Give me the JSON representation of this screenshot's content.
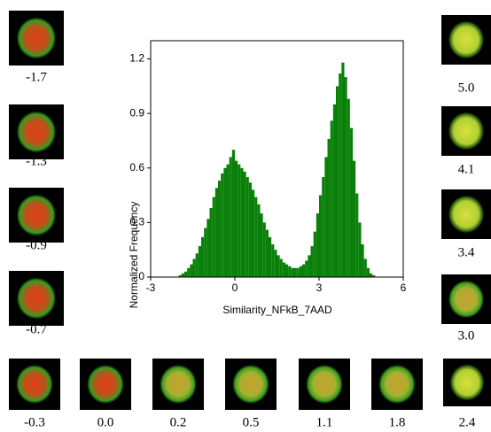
{
  "chart_data": {
    "type": "histogram",
    "xlabel": "Similarity_NFkB_7AAD",
    "ylabel": "Normalized Frequency",
    "color": "#0a800a",
    "bins": [
      -2.0,
      -1.9,
      -1.8,
      -1.7,
      -1.6,
      -1.5,
      -1.4,
      -1.3,
      -1.2,
      -1.1,
      -1.0,
      -0.9,
      -0.8,
      -0.7,
      -0.6,
      -0.5,
      -0.4,
      -0.3,
      -0.2,
      -0.1,
      0.0,
      0.1,
      0.2,
      0.3,
      0.4,
      0.5,
      0.6,
      0.7,
      0.8,
      0.9,
      1.0,
      1.1,
      1.2,
      1.3,
      1.4,
      1.5,
      1.6,
      1.7,
      1.8,
      1.9,
      2.0,
      2.1,
      2.2,
      2.3,
      2.4,
      2.5,
      2.6,
      2.7,
      2.8,
      2.9,
      3.0,
      3.1,
      3.2,
      3.3,
      3.4,
      3.5,
      3.6,
      3.7,
      3.8,
      3.9,
      4.0,
      4.1,
      4.2,
      4.3,
      4.4,
      4.5,
      4.6,
      4.7,
      4.8,
      4.9,
      5.0
    ],
    "counts": [
      0.01,
      0.02,
      0.03,
      0.05,
      0.07,
      0.1,
      0.13,
      0.17,
      0.22,
      0.27,
      0.32,
      0.38,
      0.44,
      0.49,
      0.53,
      0.57,
      0.6,
      0.62,
      0.66,
      0.7,
      0.64,
      0.62,
      0.6,
      0.58,
      0.55,
      0.52,
      0.48,
      0.44,
      0.4,
      0.35,
      0.3,
      0.26,
      0.22,
      0.18,
      0.15,
      0.12,
      0.1,
      0.08,
      0.07,
      0.06,
      0.05,
      0.05,
      0.05,
      0.06,
      0.07,
      0.09,
      0.12,
      0.17,
      0.25,
      0.35,
      0.45,
      0.55,
      0.66,
      0.76,
      0.86,
      0.95,
      1.05,
      1.12,
      1.18,
      1.1,
      0.98,
      0.82,
      0.64,
      0.46,
      0.3,
      0.18,
      0.1,
      0.05,
      0.02,
      0.01
    ],
    "xlim": [
      -3,
      6
    ],
    "ylim": [
      0,
      1.3
    ],
    "xticks": [
      -3,
      0,
      3,
      6
    ],
    "yticks": [
      0,
      0.3,
      0.6,
      0.9,
      1.2
    ]
  },
  "cell_images": {
    "left": [
      "-1.7",
      "-1.3",
      "-0.9",
      "-0.7"
    ],
    "bottom": [
      "-0.3",
      "0.0",
      "0.2",
      "0.5",
      "1.1",
      "1.8",
      "2.4"
    ],
    "right": [
      "5.0",
      "4.1",
      "3.4",
      "3.0"
    ]
  }
}
